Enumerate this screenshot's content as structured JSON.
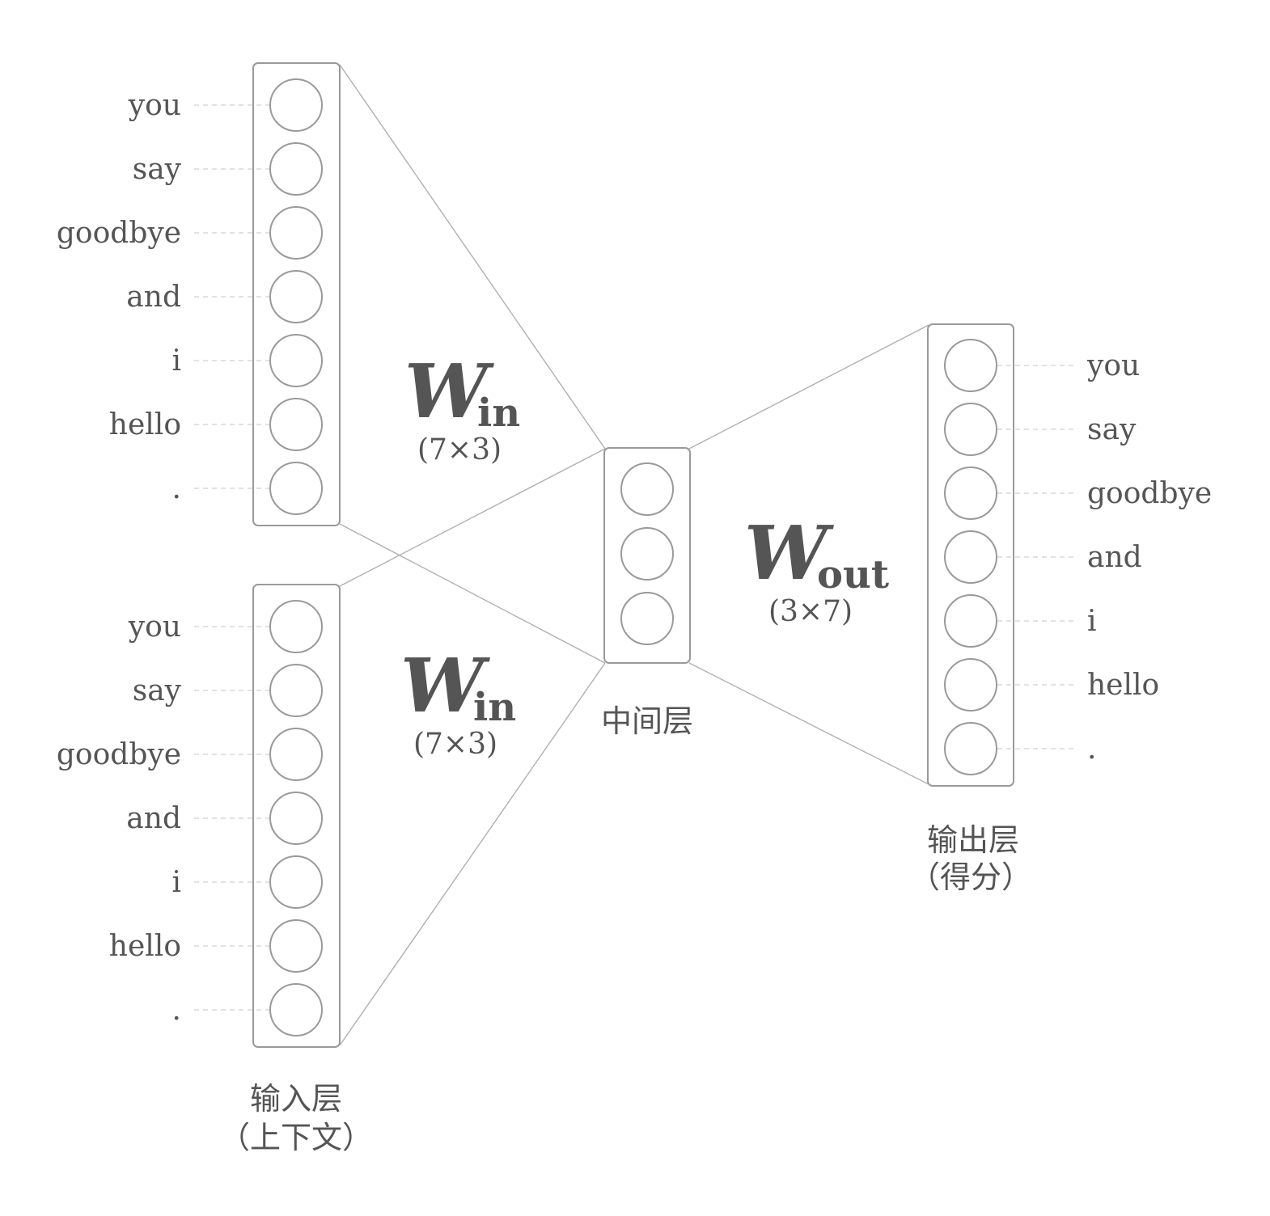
{
  "input_layer_1": {
    "words": [
      "you",
      "say",
      "goodbye",
      "and",
      "i",
      "hello",
      "."
    ]
  },
  "input_layer_2": {
    "words": [
      "you",
      "say",
      "goodbye",
      "and",
      "i",
      "hello",
      "."
    ]
  },
  "output_layer": {
    "words": [
      "you",
      "say",
      "goodbye",
      "and",
      "i",
      "hello",
      "."
    ]
  },
  "hidden_layer": {
    "neuron_count": 3,
    "label": "中间层"
  },
  "labels": {
    "input_line1": "输入层",
    "input_line2": "（上下文）",
    "output_line1": "输出层",
    "output_line2": "（得分）"
  },
  "weights": {
    "w_in_1": {
      "symbol": "W",
      "subscript": "in",
      "dim": "(7×3)"
    },
    "w_in_2": {
      "symbol": "W",
      "subscript": "in",
      "dim": "(7×3)"
    },
    "w_out": {
      "symbol": "W",
      "subscript": "out",
      "dim": "(3×7)"
    }
  },
  "colors": {
    "stroke": "#9a9a9a",
    "text": "#555555"
  }
}
